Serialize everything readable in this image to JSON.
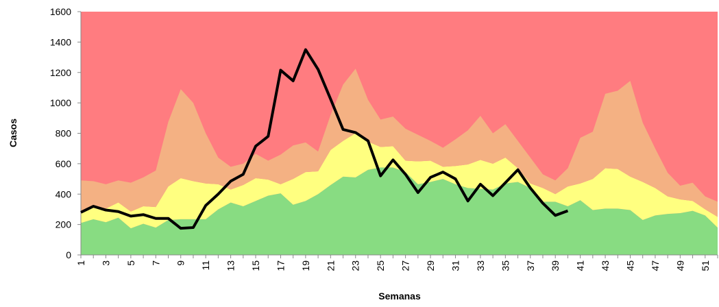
{
  "chart_data": {
    "type": "stacked-area-line",
    "x_label": "Semanas",
    "y_label": "Casos",
    "categories": [
      1,
      null,
      3,
      null,
      5,
      null,
      7,
      null,
      9,
      null,
      11,
      null,
      13,
      null,
      15,
      null,
      17,
      null,
      19,
      null,
      21,
      null,
      23,
      null,
      25,
      null,
      27,
      null,
      29,
      null,
      31,
      null,
      33,
      null,
      35,
      null,
      37,
      null,
      39,
      null,
      41,
      null,
      43,
      null,
      45,
      null,
      47,
      null,
      49,
      null,
      51,
      null
    ],
    "ylim": [
      0,
      1600
    ],
    "yticks": [
      0,
      200,
      400,
      600,
      800,
      1000,
      1200,
      1400,
      1600
    ],
    "background_color": "#ff7c80",
    "areas": [
      {
        "color": "#88dc82",
        "values": [
          210,
          235,
          215,
          245,
          175,
          205,
          180,
          230,
          235,
          235,
          235,
          300,
          345,
          320,
          355,
          390,
          405,
          330,
          355,
          400,
          460,
          515,
          510,
          560,
          575,
          575,
          545,
          465,
          480,
          500,
          465,
          440,
          435,
          430,
          470,
          480,
          440,
          350,
          350,
          320,
          360,
          295,
          305,
          305,
          295,
          230,
          260,
          270,
          275,
          290,
          260,
          180
        ]
      },
      {
        "color": "#ffff80",
        "values": [
          80,
          75,
          90,
          100,
          110,
          115,
          135,
          220,
          270,
          250,
          235,
          165,
          85,
          140,
          150,
          105,
          60,
          170,
          190,
          150,
          230,
          235,
          290,
          185,
          135,
          140,
          75,
          150,
          140,
          80,
          120,
          155,
          190,
          170,
          170,
          90,
          30,
          90,
          50,
          130,
          110,
          205,
          265,
          260,
          220,
          250,
          180,
          115,
          90,
          65,
          40,
          70
        ]
      },
      {
        "color": "#f4b183",
        "values": [
          200,
          175,
          160,
          145,
          190,
          190,
          240,
          425,
          585,
          515,
          330,
          175,
          150,
          140,
          160,
          125,
          195,
          220,
          195,
          130,
          230,
          370,
          425,
          275,
          180,
          195,
          210,
          175,
          130,
          125,
          175,
          225,
          290,
          200,
          220,
          180,
          170,
          90,
          90,
          120,
          300,
          310,
          490,
          515,
          630,
          390,
          260,
          155,
          90,
          120,
          85,
          100
        ]
      }
    ],
    "line": {
      "color": "#000000",
      "values": [
        280,
        320,
        295,
        285,
        255,
        265,
        240,
        240,
        175,
        180,
        325,
        400,
        485,
        530,
        715,
        780,
        1215,
        1145,
        1350,
        1220,
        1025,
        825,
        805,
        750,
        520,
        625,
        530,
        410,
        510,
        545,
        500,
        355,
        465,
        390,
        475,
        560,
        440,
        340,
        260,
        290,
        null,
        null,
        null,
        null,
        null,
        null,
        null,
        null,
        null,
        null,
        null,
        null
      ]
    }
  }
}
